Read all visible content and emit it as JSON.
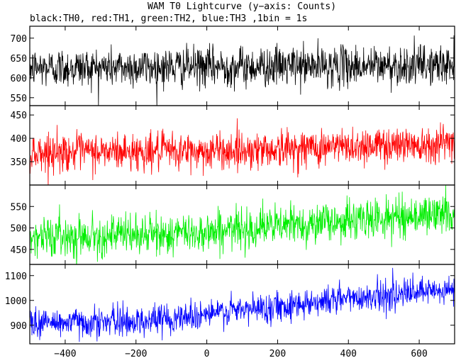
{
  "title": "WAM T0 Lightcurve (y−axis: Counts)",
  "subtitle": "black:TH0, red:TH1, green:TH2, blue:TH3 ,1bin = 1s",
  "chart_data": {
    "type": "line",
    "x_range": [
      -500,
      700
    ],
    "x_ticks": [
      -400,
      -200,
      0,
      200,
      400,
      600
    ],
    "x_tick_labels": [
      "−400",
      "−200",
      "0",
      "200",
      "400",
      "600"
    ],
    "bin_seconds": 1,
    "panels": [
      {
        "series_key": "TH0",
        "color": "#000000",
        "ylim": [
          530,
          730
        ],
        "y_ticks": [
          550,
          600,
          650,
          700
        ],
        "y_tick_labels": [
          "550",
          "600",
          "650",
          "700"
        ],
        "level": {
          "x": [
            -500,
            700
          ],
          "y": [
            625,
            632
          ]
        },
        "noise_sd": 25
      },
      {
        "series_key": "TH1",
        "color": "#ff0000",
        "ylim": [
          300,
          470
        ],
        "y_ticks": [
          350,
          400,
          450
        ],
        "y_tick_labels": [
          "350",
          "400",
          "450"
        ],
        "level": {
          "x": [
            -500,
            0,
            300,
            700
          ],
          "y": [
            370,
            372,
            380,
            392
          ]
        },
        "noise_sd": 20
      },
      {
        "series_key": "TH2",
        "color": "#00ee00",
        "ylim": [
          415,
          600
        ],
        "y_ticks": [
          450,
          500,
          550
        ],
        "y_tick_labels": [
          "450",
          "500",
          "550"
        ],
        "level": {
          "x": [
            -500,
            -100,
            200,
            700
          ],
          "y": [
            480,
            485,
            505,
            535
          ]
        },
        "noise_sd": 23
      },
      {
        "series_key": "TH3",
        "color": "#0000ff",
        "ylim": [
          825,
          1145
        ],
        "y_ticks": [
          900,
          1000,
          1100
        ],
        "y_tick_labels": [
          "900",
          "1000",
          "1100"
        ],
        "level": {
          "x": [
            -500,
            -200,
            100,
            400,
            700
          ],
          "y": [
            910,
            915,
            960,
            1010,
            1040
          ]
        },
        "noise_sd": 30
      }
    ]
  }
}
